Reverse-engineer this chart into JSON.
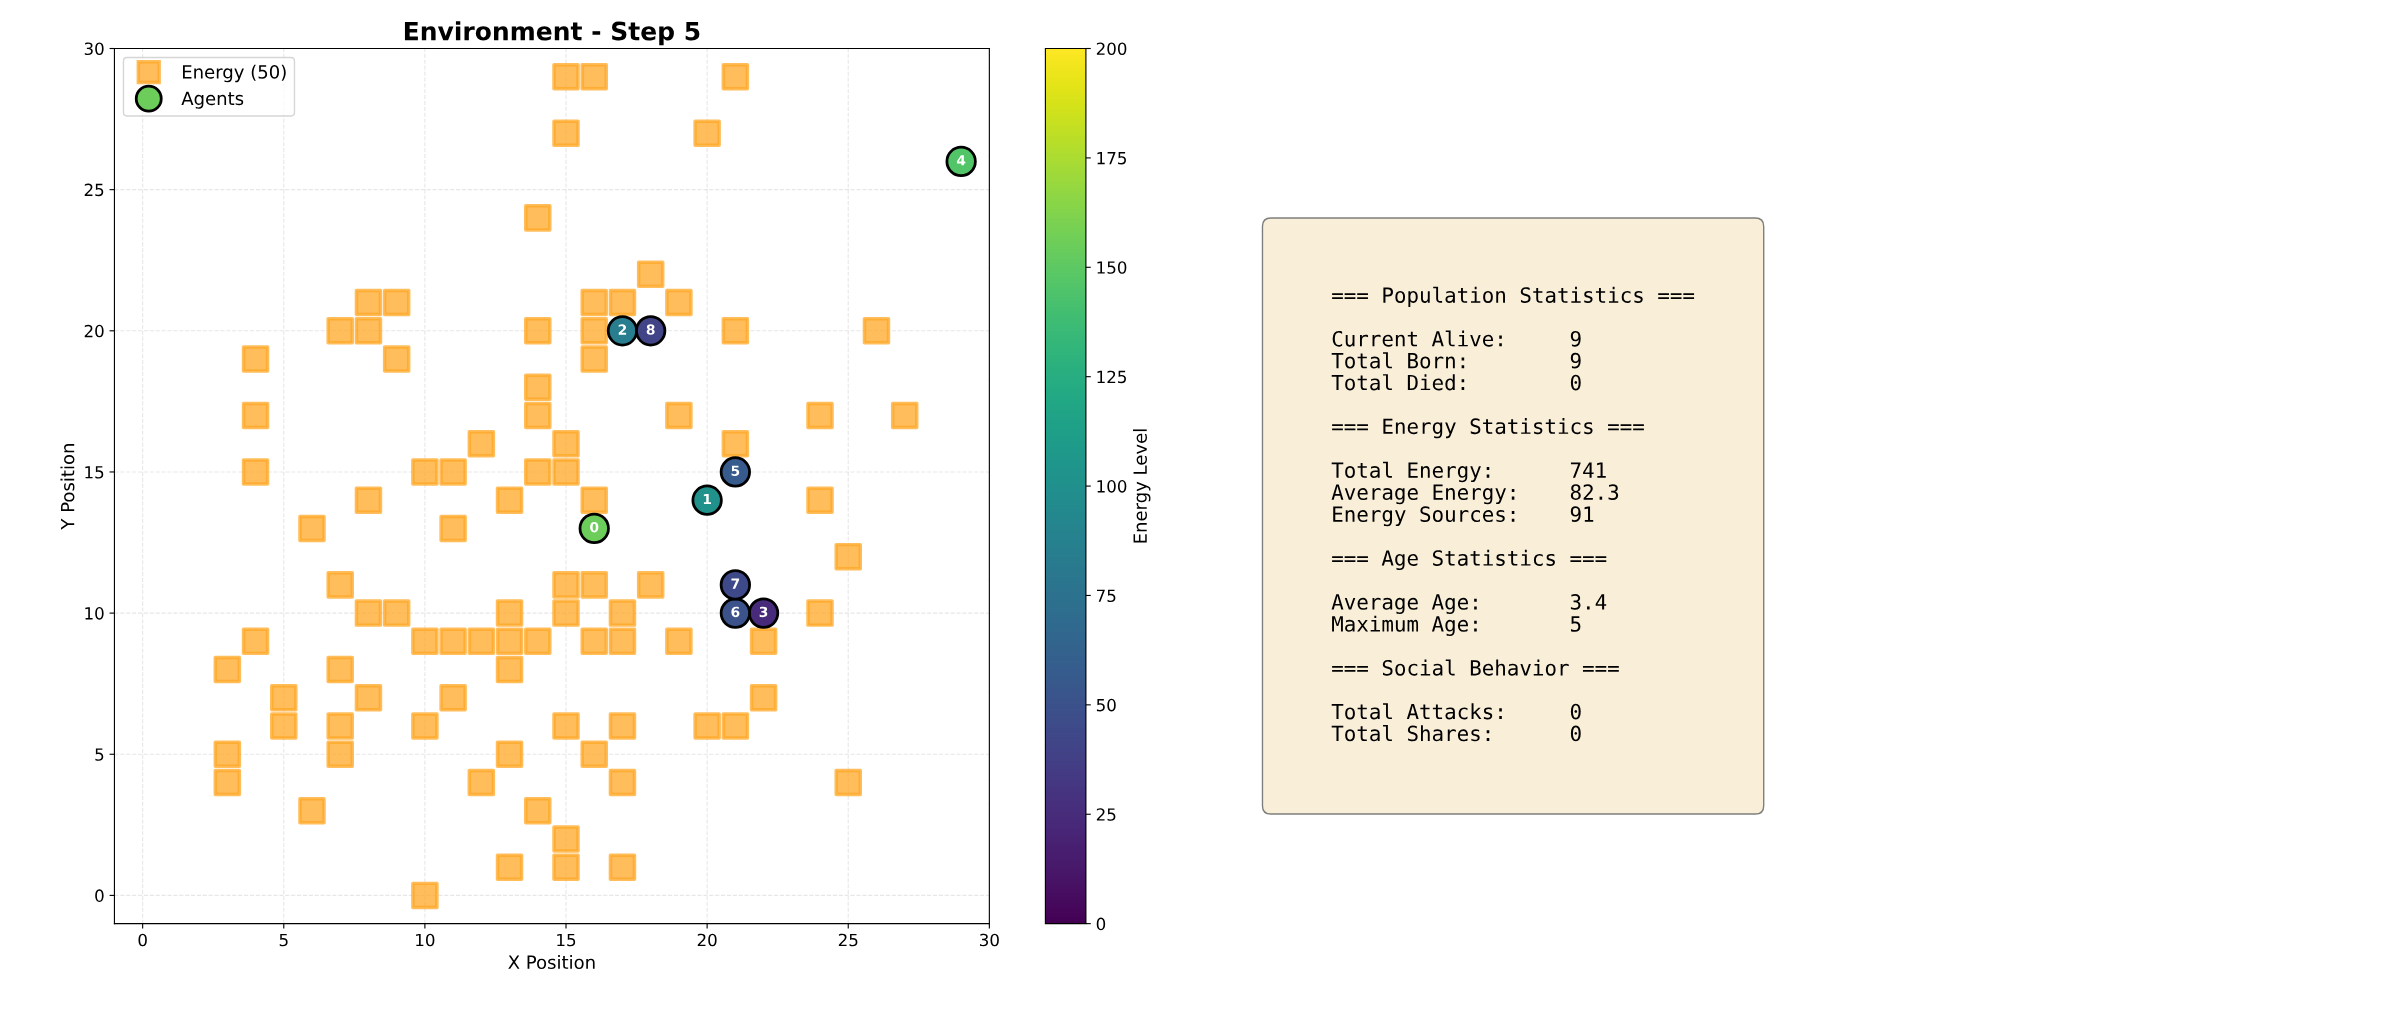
{
  "chart_data": [
    {
      "type": "scatter",
      "title": "Environment - Step 5",
      "xlabel": "X Position",
      "ylabel": "Y Position",
      "clabel": "Energy Level",
      "xlim": [
        -1,
        30
      ],
      "ylim": [
        -1,
        30
      ],
      "xticks": [
        0,
        5,
        10,
        15,
        20,
        25,
        30
      ],
      "yticks": [
        0,
        5,
        10,
        15,
        20,
        25,
        30
      ],
      "clim": [
        0,
        200
      ],
      "cticks": [
        0,
        25,
        50,
        75,
        100,
        125,
        150,
        175,
        200
      ],
      "grid": true,
      "legend": "top left",
      "series": [
        {
          "name": "Energy (50)",
          "color": "#ffa726",
          "marker": "square",
          "x": [
            15,
            16,
            21,
            15,
            20,
            14,
            18,
            8,
            9,
            16,
            17,
            19,
            7,
            8,
            14,
            16,
            21,
            26,
            4,
            9,
            16,
            14,
            4,
            14,
            19,
            24,
            27,
            12,
            15,
            21,
            4,
            10,
            11,
            14,
            15,
            8,
            13,
            16,
            24,
            6,
            11,
            25,
            7,
            15,
            16,
            18,
            8,
            9,
            13,
            15,
            17,
            24,
            4,
            10,
            11,
            12,
            13,
            14,
            16,
            17,
            19,
            22,
            3,
            7,
            13,
            5,
            8,
            11,
            22,
            5,
            7,
            10,
            15,
            17,
            20,
            21,
            3,
            7,
            13,
            16,
            3,
            12,
            17,
            25,
            6,
            14,
            15,
            13,
            15,
            17,
            10
          ],
          "values": [
            29,
            29,
            29,
            27,
            27,
            24,
            22,
            21,
            21,
            21,
            21,
            21,
            20,
            20,
            20,
            20,
            20,
            20,
            19,
            19,
            19,
            18,
            17,
            17,
            17,
            17,
            17,
            16,
            16,
            16,
            15,
            15,
            15,
            15,
            15,
            14,
            14,
            14,
            14,
            13,
            13,
            12,
            11,
            11,
            11,
            11,
            10,
            10,
            10,
            10,
            10,
            10,
            9,
            9,
            9,
            9,
            9,
            9,
            9,
            9,
            9,
            9,
            8,
            8,
            8,
            7,
            7,
            7,
            7,
            6,
            6,
            6,
            6,
            6,
            6,
            6,
            5,
            5,
            5,
            5,
            4,
            4,
            4,
            4,
            3,
            3,
            2,
            1,
            1,
            1,
            0
          ]
        },
        {
          "name": "Agents",
          "marker": "circle",
          "x": [
            16,
            20,
            17,
            22,
            29,
            21,
            21,
            21,
            18
          ],
          "values": [
            13,
            14,
            20,
            10,
            26,
            15,
            10,
            11,
            20
          ],
          "colors": [
            "#6ccd5a",
            "#21918c",
            "#287d8e",
            "#472a7a",
            "#52c569",
            "#375b8d",
            "#3b528b",
            "#3e4989",
            "#414487"
          ]
        }
      ],
      "annotations": [
        {
          "text": "0",
          "x": 16,
          "y": 13
        },
        {
          "text": "1",
          "x": 20,
          "y": 14
        },
        {
          "text": "2",
          "x": 17,
          "y": 20
        },
        {
          "text": "3",
          "x": 22,
          "y": 10
        },
        {
          "text": "4",
          "x": 29,
          "y": 26
        },
        {
          "text": "5",
          "x": 21,
          "y": 15
        },
        {
          "text": "6",
          "x": 21,
          "y": 10
        },
        {
          "text": "7",
          "x": 21,
          "y": 11
        },
        {
          "text": "8",
          "x": 18,
          "y": 20
        }
      ]
    },
    {
      "type": "other",
      "annotations": [
        "=== Population Statistics ===",
        "Current Alive:     9\nTotal Born:        9\nTotal Died:        0",
        "=== Energy Statistics ===",
        "Total Energy:      741\nAverage Energy:    82.3\nEnergy Sources:    91",
        "=== Age Statistics ===",
        "Average Age:       3.4\nMaximum Age:       5",
        "=== Social Behavior ===",
        "Total Attacks:     0\nTotal Shares:      0"
      ]
    }
  ]
}
